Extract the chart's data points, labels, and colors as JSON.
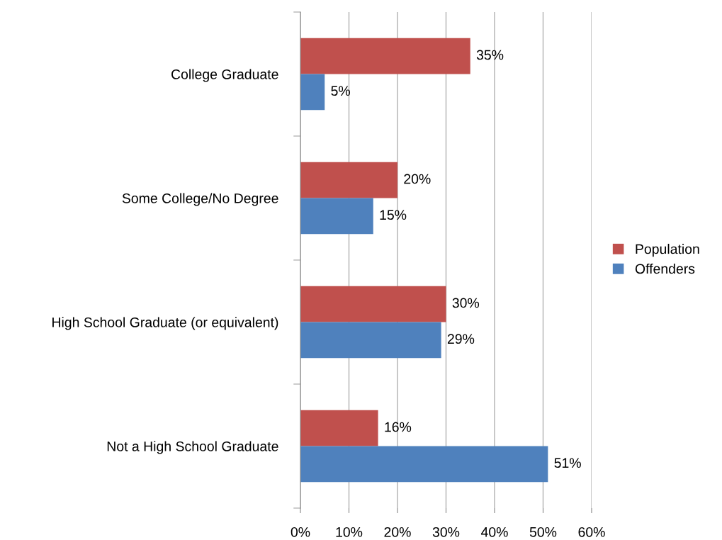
{
  "chart_data": {
    "type": "bar",
    "orientation": "horizontal",
    "categories": [
      "College Graduate",
      "Some College/No Degree",
      "High School Graduate (or equivalent)",
      "Not a High School Graduate"
    ],
    "series": [
      {
        "name": "Population",
        "color": "#c0504d",
        "values": [
          35,
          20,
          30,
          16
        ],
        "value_labels": [
          "35%",
          "20%",
          "30%",
          "16%"
        ]
      },
      {
        "name": "Offenders",
        "color": "#4f81bd",
        "values": [
          5,
          15,
          29,
          51
        ],
        "value_labels": [
          "5%",
          "15%",
          "29%",
          "51%"
        ]
      }
    ],
    "xlim": [
      0,
      60
    ],
    "xticks": [
      {
        "value": 0,
        "label": "0%"
      },
      {
        "value": 10,
        "label": "10%"
      },
      {
        "value": 20,
        "label": "20%"
      },
      {
        "value": 30,
        "label": "30%"
      },
      {
        "value": 40,
        "label": "40%"
      },
      {
        "value": 50,
        "label": "50%"
      },
      {
        "value": 60,
        "label": "60%"
      }
    ],
    "grid": "x",
    "legend": "right"
  }
}
